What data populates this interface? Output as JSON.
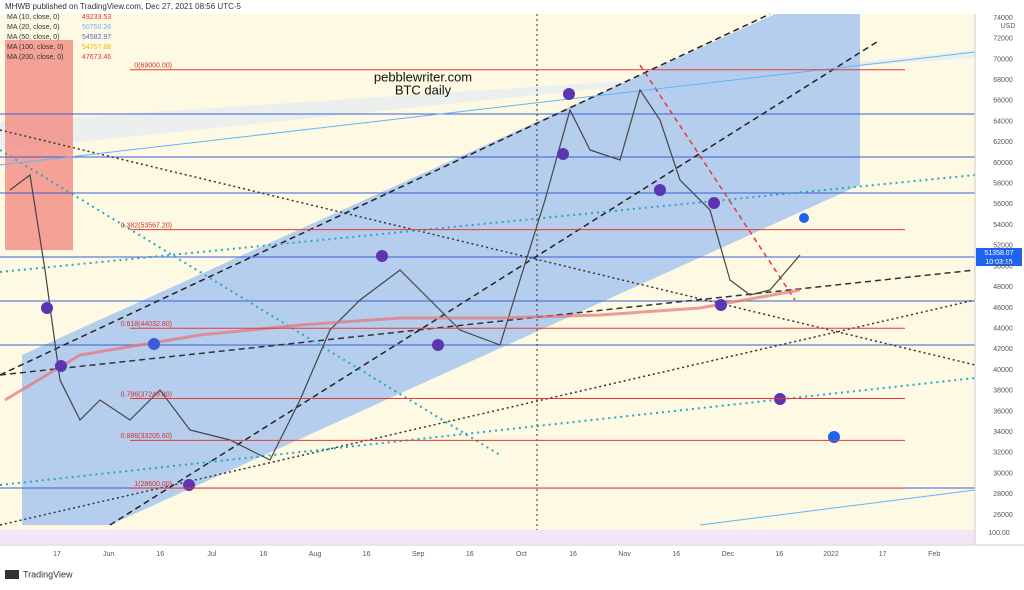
{
  "header": {
    "publisher": "MHWB published on TradingView.com, Dec 27, 2021 08:56 UTC-5"
  },
  "legend": [
    {
      "label": "MA (10, close, 0)",
      "value": "49233.53",
      "color": "#e53935"
    },
    {
      "label": "MA (20, close, 0)",
      "value": "50750.26",
      "color": "#64b5f6"
    },
    {
      "label": "MA (50, close, 0)",
      "value": "54582.97",
      "color": "#5c6bc0"
    },
    {
      "label": "MA (100, close, 0)",
      "value": "54757.88",
      "color": "#ffb300"
    },
    {
      "label": "MA (200, close, 0)",
      "value": "47673.46",
      "color": "#e53935"
    }
  ],
  "annotation": {
    "site": "pebblewriter.com",
    "subtitle": "BTC daily"
  },
  "price_axis": {
    "currency": "USD",
    "ticks": [
      26000,
      28000,
      30000,
      32000,
      34000,
      36000,
      38000,
      40000,
      42000,
      44000,
      46000,
      48000,
      50000,
      52000,
      54000,
      56000,
      58000,
      60000,
      62000,
      64000,
      66000,
      68000,
      70000,
      72000,
      74000
    ],
    "last_price": "51358.07",
    "countdown": "10:03:15",
    "indicator_tick": "100.00"
  },
  "fib_levels": [
    {
      "label": "0(69000.00)",
      "price": 69000
    },
    {
      "label": "0.382(53567.20)",
      "price": 53567.2
    },
    {
      "label": "0.618(44032.80)",
      "price": 44032.8
    },
    {
      "label": "0.786(37249.80)",
      "price": 37249.8
    },
    {
      "label": "0.886(33205.60)",
      "price": 33205.6
    },
    {
      "label": "1(28600.00)",
      "price": 28600
    }
  ],
  "time_axis": [
    "17",
    "Jun",
    "16",
    "Jul",
    "16",
    "Aug",
    "16",
    "Sep",
    "16",
    "Oct",
    "16",
    "Nov",
    "16",
    "Dec",
    "16",
    "2022",
    "17",
    "Feb"
  ],
  "footer": {
    "brand": "TradingView"
  }
}
